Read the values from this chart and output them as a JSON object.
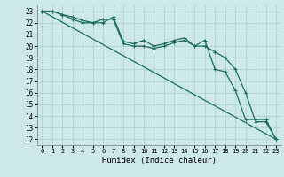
{
  "xlabel": "Humidex (Indice chaleur)",
  "bg_color": "#cce8e8",
  "grid_color": "#aacfcf",
  "line_color": "#1e6b5e",
  "xlim": [
    -0.5,
    23.5
  ],
  "ylim": [
    11.5,
    23.5
  ],
  "xticks": [
    0,
    1,
    2,
    3,
    4,
    5,
    6,
    7,
    8,
    9,
    10,
    11,
    12,
    13,
    14,
    15,
    16,
    17,
    18,
    19,
    20,
    21,
    22,
    23
  ],
  "yticks": [
    12,
    13,
    14,
    15,
    16,
    17,
    18,
    19,
    20,
    21,
    22,
    23
  ],
  "line1_x": [
    0,
    1,
    2,
    3,
    4,
    5,
    6,
    7,
    8,
    9,
    10,
    11,
    12,
    13,
    14,
    15,
    16,
    17,
    18,
    19,
    20,
    21,
    22,
    23
  ],
  "line1_y": [
    23,
    23,
    22.7,
    22.5,
    22.2,
    22.0,
    22.0,
    22.5,
    20.4,
    20.2,
    20.5,
    20.0,
    20.2,
    20.5,
    20.7,
    20.0,
    20.5,
    18.0,
    17.8,
    16.2,
    13.7,
    13.7,
    13.7,
    12.0
  ],
  "line2_x": [
    0,
    1,
    2,
    3,
    4,
    5,
    6,
    7,
    8,
    9,
    10,
    11,
    12,
    13,
    14,
    15,
    16,
    17,
    18,
    19,
    20,
    21,
    22,
    23
  ],
  "line2_y": [
    23,
    23,
    22.7,
    22.3,
    22.0,
    22.0,
    22.3,
    22.3,
    20.2,
    20.0,
    20.0,
    19.8,
    20.0,
    20.3,
    20.5,
    20.0,
    20.0,
    19.5,
    19.0,
    18.0,
    16.0,
    13.5,
    13.5,
    12.0
  ],
  "line3_x": [
    0,
    23
  ],
  "line3_y": [
    23,
    12
  ]
}
